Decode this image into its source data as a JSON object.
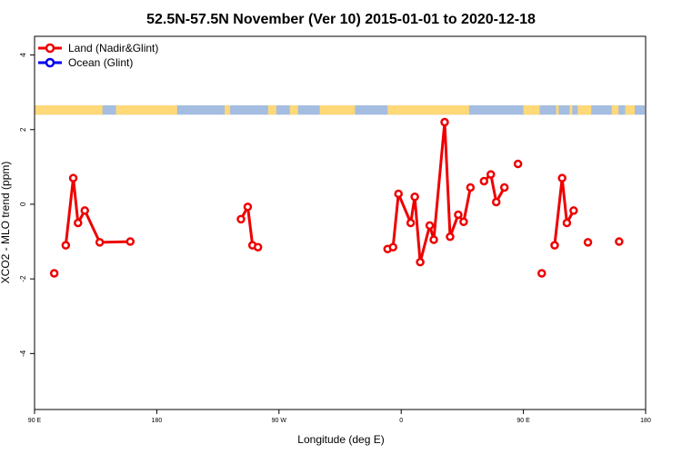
{
  "chart_data": {
    "type": "line",
    "title": "52.5N-57.5N November (Ver 10)   2015-01-01 to 2020-12-18",
    "xlabel": "Longitude (deg E)",
    "ylabel": "XCO2 - MLO trend (ppm)",
    "xlim": [
      90,
      540
    ],
    "ylim": [
      -5.5,
      4.5
    ],
    "x_ticks": [
      90,
      180,
      270,
      360,
      450,
      540
    ],
    "x_tick_labels": [
      "90 E",
      "180",
      "90 W",
      "0",
      "90 E",
      "180"
    ],
    "y_ticks": [
      -4,
      -2,
      0,
      2,
      4
    ],
    "y_tick_labels": [
      "-4",
      "-2",
      "0",
      "2",
      "4"
    ],
    "grid": false,
    "legend_position": "top-left",
    "land_ocean_strip": {
      "y_range": [
        2.4,
        2.65
      ],
      "land_color": "#ffd878",
      "ocean_color": "#a4bde0"
    },
    "series": [
      {
        "name": "Land (Nadir&Glint)",
        "color": "#ee0000",
        "segments": [
          [
            [
              104.5,
              -1.85
            ]
          ],
          [
            [
              113,
              -1.1
            ],
            [
              118.5,
              0.7
            ],
            [
              122,
              -0.5
            ],
            [
              127,
              -0.17
            ],
            [
              138,
              -1.02
            ],
            [
              160.5,
              -1.0
            ]
          ],
          [
            [
              242,
              -0.4
            ],
            [
              247,
              -0.07
            ],
            [
              250.5,
              -1.1
            ],
            [
              254.5,
              -1.15
            ]
          ],
          [
            [
              350,
              -1.2
            ],
            [
              354,
              -1.15
            ],
            [
              358,
              0.28
            ],
            [
              367,
              -0.5
            ],
            [
              370,
              0.2
            ],
            [
              374,
              -1.55
            ],
            [
              381,
              -0.57
            ],
            [
              384,
              -0.95
            ],
            [
              392,
              2.2
            ],
            [
              396,
              -0.87
            ],
            [
              402,
              -0.28
            ],
            [
              406,
              -0.47
            ],
            [
              411,
              0.45
            ]
          ],
          [
            [
              421,
              0.62
            ],
            [
              426,
              0.8
            ],
            [
              430,
              0.06
            ],
            [
              436,
              0.45
            ]
          ],
          [
            [
              446,
              1.08
            ]
          ],
          [
            [
              463.5,
              -1.85
            ]
          ],
          [
            [
              473,
              -1.1
            ],
            [
              478.5,
              0.7
            ],
            [
              482,
              -0.5
            ],
            [
              487,
              -0.17
            ]
          ],
          [
            [
              497.5,
              -1.02
            ]
          ],
          [
            [
              520.5,
              -1.0
            ]
          ]
        ]
      },
      {
        "name": "Ocean (Glint)",
        "color": "#0000ee",
        "segments": []
      }
    ]
  }
}
